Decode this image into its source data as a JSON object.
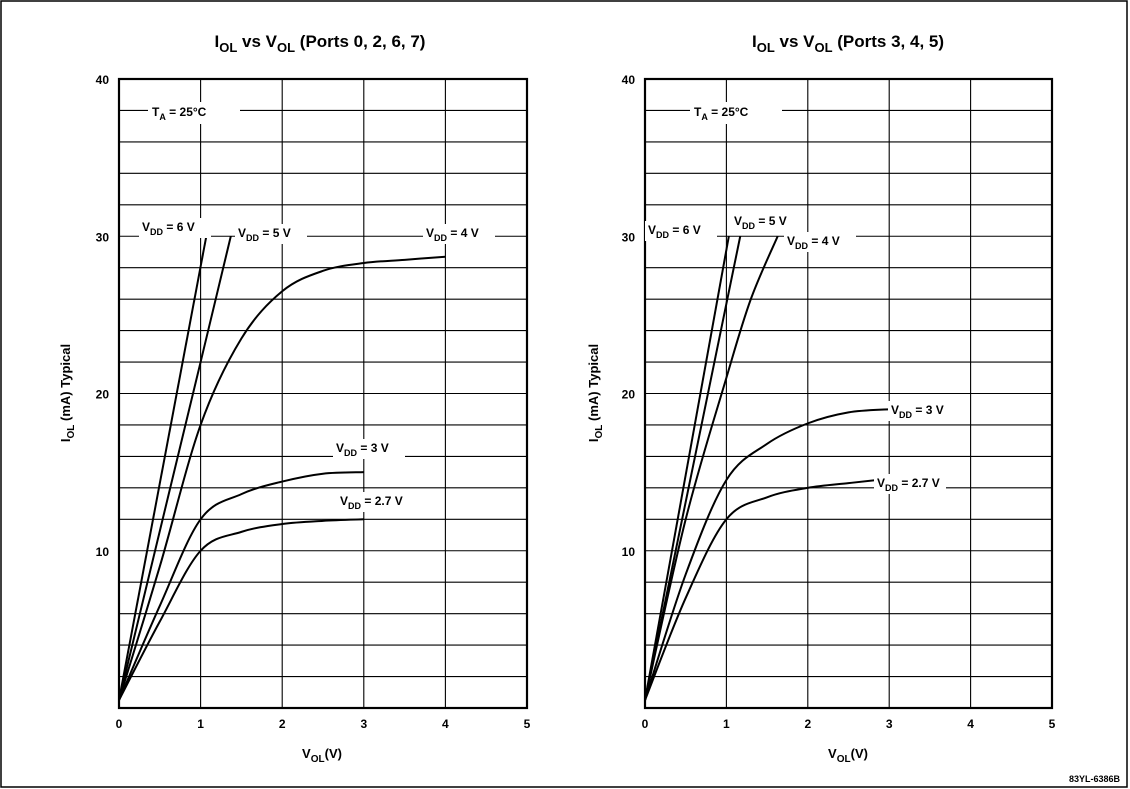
{
  "figure_code": "83YL-6386B",
  "chart_data": [
    {
      "type": "line",
      "title": {
        "main": "I",
        "sub": "OL",
        "mid": " vs V",
        "sub2": "OL",
        "tail": " (Ports 0, 2, 6, 7)"
      },
      "xlabel": {
        "main": "V",
        "sub": "OL",
        "tail": "(V)"
      },
      "ylabel": {
        "main": "I",
        "sub": "OL",
        "tail": " (mA) Typical"
      },
      "xlim": [
        0,
        5
      ],
      "ylim": [
        0,
        40
      ],
      "x_ticks": [
        0,
        1,
        2,
        3,
        4,
        5
      ],
      "y_ticks": [
        10,
        20,
        30,
        40
      ],
      "x_minor_step": 1,
      "y_minor_step": 2,
      "grid": true,
      "annotation_ta": {
        "main": "T",
        "sub": "A",
        "tail": " = 25°C"
      },
      "series": [
        {
          "label": {
            "main": "V",
            "sub": "DD",
            "tail": " = 6 V"
          },
          "x": [
            0,
            1.07
          ],
          "y": [
            0.5,
            30
          ]
        },
        {
          "label": {
            "main": "V",
            "sub": "DD",
            "tail": " = 5 V"
          },
          "x": [
            0,
            1.0,
            1.37
          ],
          "y": [
            0.5,
            22,
            30
          ]
        },
        {
          "label": {
            "main": "V",
            "sub": "DD",
            "tail": " = 4 V"
          },
          "x": [
            0,
            0.5,
            1.0,
            1.5,
            2.0,
            2.5,
            3.0,
            3.5,
            4.0
          ],
          "y": [
            0.5,
            9,
            18,
            23.5,
            26.5,
            27.8,
            28.3,
            28.5,
            28.7
          ]
        },
        {
          "label": {
            "main": "V",
            "sub": "DD",
            "tail": " = 3 V"
          },
          "x": [
            0,
            0.5,
            1.0,
            1.5,
            2.0,
            2.5,
            3.0
          ],
          "y": [
            0.5,
            6.5,
            12,
            13.6,
            14.4,
            14.9,
            15
          ]
        },
        {
          "label": {
            "main": "V",
            "sub": "DD",
            "tail": " = 2.7 V"
          },
          "x": [
            0,
            0.5,
            1.0,
            1.5,
            2.0,
            2.5,
            3.0
          ],
          "y": [
            0.5,
            5.5,
            10,
            11.2,
            11.7,
            11.9,
            12
          ]
        }
      ]
    },
    {
      "type": "line",
      "title": {
        "main": "I",
        "sub": "OL",
        "mid": " vs V",
        "sub2": "OL",
        "tail": " (Ports 3, 4, 5)"
      },
      "xlabel": {
        "main": "V",
        "sub": "OL",
        "tail": "(V)"
      },
      "ylabel": {
        "main": "I",
        "sub": "OL",
        "tail": " (mA) Typical"
      },
      "xlim": [
        0,
        5
      ],
      "ylim": [
        0,
        40
      ],
      "x_ticks": [
        0,
        1,
        2,
        3,
        4,
        5
      ],
      "y_ticks": [
        10,
        20,
        30,
        40
      ],
      "x_minor_step": 1,
      "y_minor_step": 2,
      "grid": true,
      "annotation_ta": {
        "main": "T",
        "sub": "A",
        "tail": " = 25°C"
      },
      "series": [
        {
          "label": {
            "main": "V",
            "sub": "DD",
            "tail": " = 6 V"
          },
          "x": [
            0,
            1.03
          ],
          "y": [
            0.5,
            30
          ]
        },
        {
          "label": {
            "main": "V",
            "sub": "DD",
            "tail": " = 5 V"
          },
          "x": [
            0,
            1.17
          ],
          "y": [
            0.5,
            30
          ]
        },
        {
          "label": {
            "main": "V",
            "sub": "DD",
            "tail": " = 4 V"
          },
          "x": [
            0,
            0.5,
            1.0,
            1.3,
            1.63
          ],
          "y": [
            0.5,
            12,
            21,
            26,
            30
          ]
        },
        {
          "label": {
            "main": "V",
            "sub": "DD",
            "tail": " = 3 V"
          },
          "x": [
            0,
            0.5,
            1.0,
            1.5,
            2.0,
            2.5,
            3.0
          ],
          "y": [
            0.5,
            8.5,
            14.5,
            16.8,
            18.1,
            18.8,
            19
          ]
        },
        {
          "label": {
            "main": "V",
            "sub": "DD",
            "tail": " = 2.7 V"
          },
          "x": [
            0,
            0.5,
            1.0,
            1.5,
            2.0,
            2.5,
            2.85
          ],
          "y": [
            0.5,
            7,
            12,
            13.4,
            14,
            14.3,
            14.5
          ]
        }
      ]
    }
  ]
}
